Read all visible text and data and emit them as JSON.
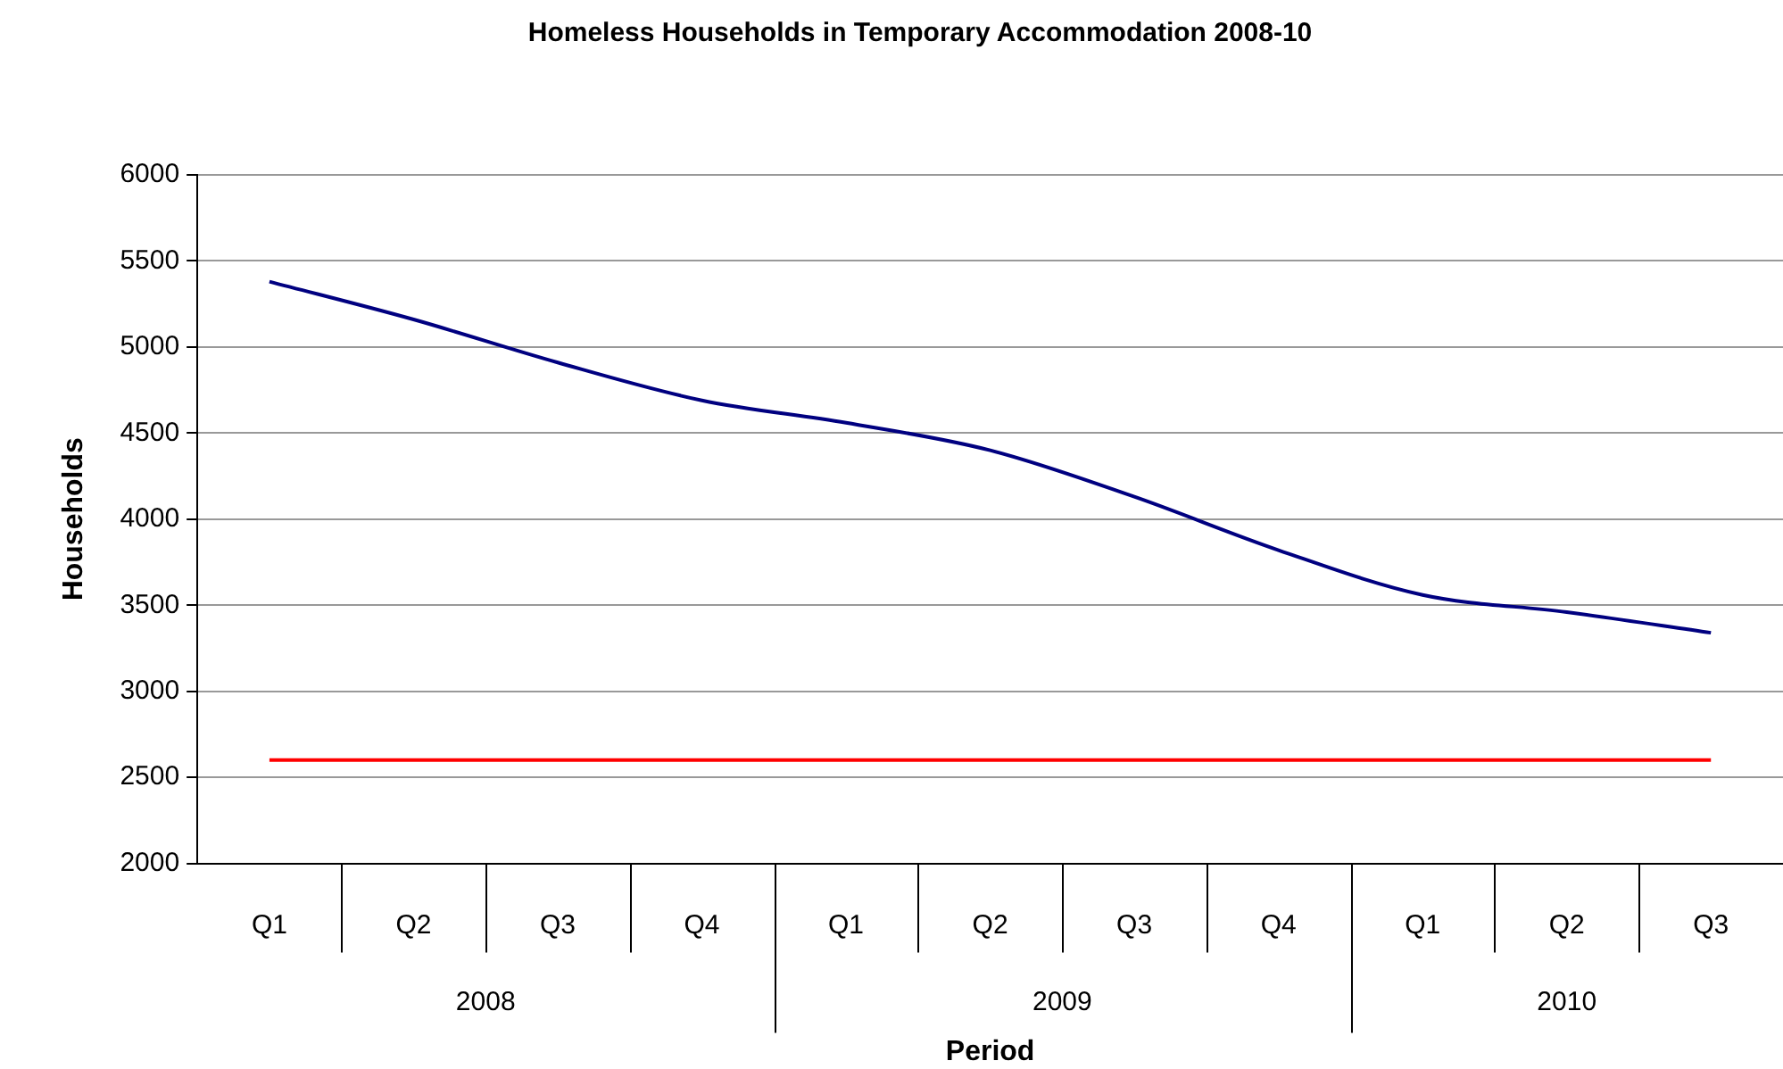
{
  "chart_data": {
    "type": "line",
    "title": "Homeless Households in Temporary Accommodation 2008-10",
    "xlabel": "Period",
    "ylabel": "Households",
    "categories": [
      "Q1",
      "Q2",
      "Q3",
      "Q4",
      "Q1",
      "Q2",
      "Q3",
      "Q4",
      "Q1",
      "Q2",
      "Q3"
    ],
    "annotations": [
      "2008",
      "2009",
      "2010"
    ],
    "series": [
      {
        "color": "#000080",
        "values": [
          5380,
          5160,
          4910,
          4690,
          4560,
          4400,
          4130,
          3820,
          3560,
          3460,
          3340
        ]
      },
      {
        "color": "#ff0000",
        "values": [
          2600,
          2600,
          2600,
          2600,
          2600,
          2600,
          2600,
          2600,
          2600,
          2600,
          2600
        ]
      }
    ],
    "ylim": [
      2000,
      6000
    ],
    "yticks": [
      2000,
      2500,
      3000,
      3500,
      4000,
      4500,
      5000,
      5500,
      6000
    ],
    "grid": "y",
    "legend": false,
    "marker": "none",
    "line_style": "solid"
  }
}
